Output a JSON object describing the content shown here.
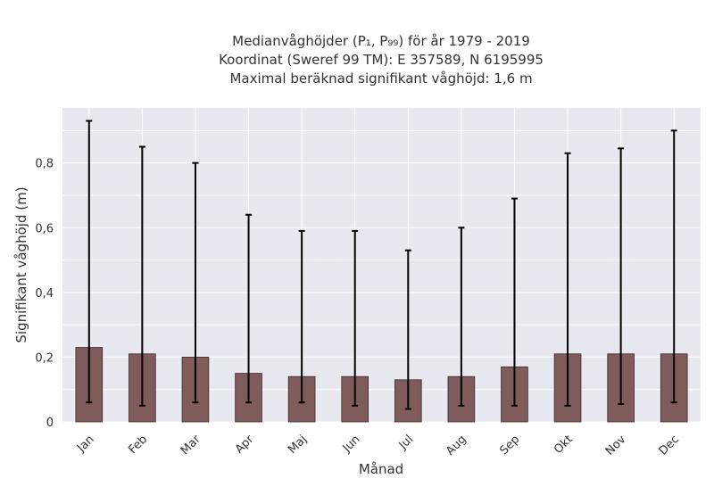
{
  "chart_data": {
    "type": "bar",
    "title": [
      "Medianvåghöjder (P₁, P₉₉) för år 1979 - 2019",
      "Koordinat (Sweref 99 TM): E 357589, N 6195995",
      "Maximal beräknad signifikant våghöjd: 1,6 m"
    ],
    "xlabel": "Månad",
    "ylabel": "Signifikant våghöjd (m)",
    "categories": [
      "Jan",
      "Feb",
      "Mar",
      "Apr",
      "Maj",
      "Jun",
      "Jul",
      "Aug",
      "Sep",
      "Okt",
      "Nov",
      "Dec"
    ],
    "values": [
      0.23,
      0.21,
      0.2,
      0.15,
      0.14,
      0.14,
      0.13,
      0.14,
      0.17,
      0.21,
      0.21,
      0.21
    ],
    "error_low": [
      0.06,
      0.05,
      0.06,
      0.06,
      0.06,
      0.05,
      0.04,
      0.05,
      0.05,
      0.05,
      0.055,
      0.06
    ],
    "error_high": [
      0.93,
      0.85,
      0.8,
      0.64,
      0.59,
      0.59,
      0.53,
      0.6,
      0.69,
      0.83,
      0.845,
      0.9
    ],
    "ylim": [
      0,
      0.97
    ],
    "yticks": [
      0,
      0.2,
      0.4,
      0.6,
      0.8
    ],
    "ytick_labels": [
      "0",
      "0,2",
      "0,4",
      "0,6",
      "0,8"
    ],
    "grid": true,
    "bar_color": "#7f5b5b",
    "plot_background": "#e8e8f0",
    "grid_color": "#ffffff"
  }
}
